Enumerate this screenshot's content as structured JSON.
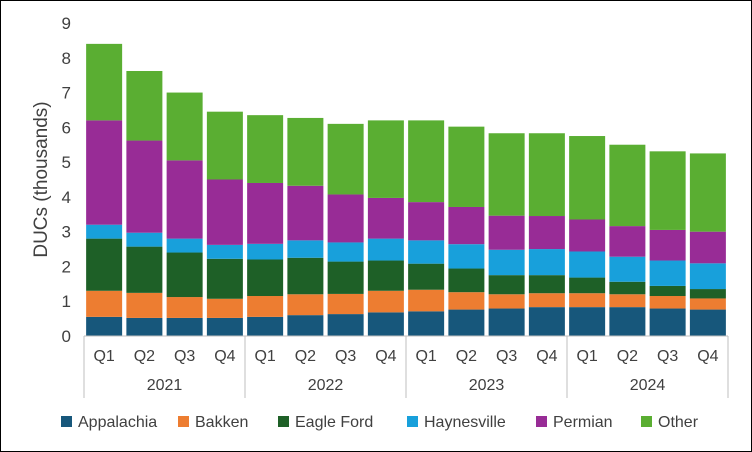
{
  "chart_data": {
    "type": "stacked-bar",
    "ylabel": "DUCs (thousands)",
    "xlabel": "",
    "title": "",
    "ylim": [
      0,
      9
    ],
    "yticks": [
      0,
      1,
      2,
      3,
      4,
      5,
      6,
      7,
      8,
      9
    ],
    "grid": false,
    "legend": "bottom",
    "categories": [
      "Q1",
      "Q2",
      "Q3",
      "Q4",
      "Q1",
      "Q2",
      "Q3",
      "Q4",
      "Q1",
      "Q2",
      "Q3",
      "Q4",
      "Q1",
      "Q2",
      "Q3",
      "Q4"
    ],
    "groups": [
      {
        "label": "2021",
        "count": 4
      },
      {
        "label": "2022",
        "count": 4
      },
      {
        "label": "2023",
        "count": 4
      },
      {
        "label": "2024",
        "count": 4
      }
    ],
    "series": [
      {
        "name": "Appalachia",
        "color": "#17577b",
        "values": [
          0.55,
          0.52,
          0.52,
          0.52,
          0.55,
          0.6,
          0.63,
          0.68,
          0.71,
          0.76,
          0.79,
          0.83,
          0.83,
          0.83,
          0.79,
          0.76
        ]
      },
      {
        "name": "Bakken",
        "color": "#ed7d31",
        "values": [
          0.75,
          0.72,
          0.6,
          0.55,
          0.6,
          0.6,
          0.58,
          0.62,
          0.62,
          0.5,
          0.41,
          0.4,
          0.4,
          0.37,
          0.36,
          0.32
        ]
      },
      {
        "name": "Eagle Ford",
        "color": "#1e6027",
        "values": [
          1.5,
          1.33,
          1.28,
          1.15,
          1.05,
          1.05,
          0.93,
          0.87,
          0.75,
          0.68,
          0.55,
          0.52,
          0.45,
          0.36,
          0.29,
          0.27
        ]
      },
      {
        "name": "Haynesville",
        "color": "#18a0db",
        "values": [
          0.4,
          0.4,
          0.4,
          0.4,
          0.45,
          0.5,
          0.55,
          0.63,
          0.67,
          0.7,
          0.73,
          0.75,
          0.75,
          0.72,
          0.73,
          0.74
        ]
      },
      {
        "name": "Permian",
        "color": "#982c96",
        "values": [
          3.0,
          2.65,
          2.25,
          1.88,
          1.75,
          1.57,
          1.38,
          1.17,
          1.1,
          1.07,
          0.98,
          0.95,
          0.92,
          0.88,
          0.88,
          0.91
        ]
      },
      {
        "name": "Other",
        "color": "#5aae32",
        "values": [
          2.2,
          2.0,
          1.95,
          1.95,
          1.95,
          1.95,
          2.03,
          2.23,
          2.35,
          2.31,
          2.37,
          2.38,
          2.4,
          2.34,
          2.26,
          2.25
        ]
      }
    ]
  }
}
